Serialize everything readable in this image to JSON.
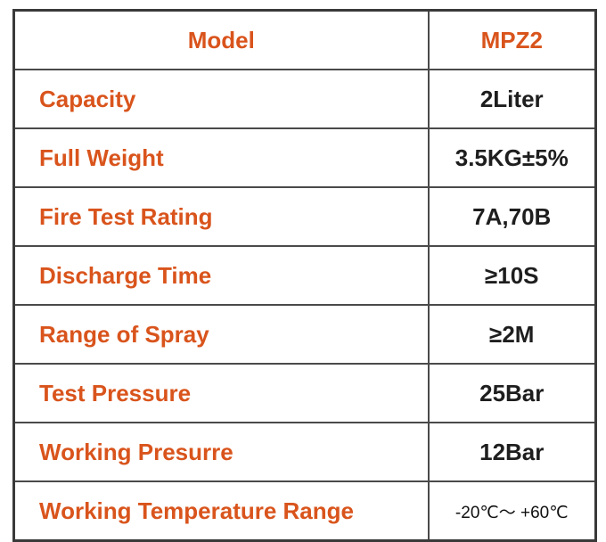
{
  "table": {
    "header": {
      "label": "Model",
      "value": "MPZ2"
    },
    "rows": [
      {
        "label": "Capacity",
        "value": "2Liter"
      },
      {
        "label": "Full Weight",
        "value": "3.5KG±5%"
      },
      {
        "label": "Fire Test Rating",
        "value": "7A,70B"
      },
      {
        "label": "Discharge Time",
        "value": "≥10S"
      },
      {
        "label": "Range of Spray",
        "value": "≥2M"
      },
      {
        "label": "Test Pressure",
        "value": "25Bar"
      },
      {
        "label": "Working Presurre",
        "value": "12Bar"
      },
      {
        "label": "Working Temperature Range",
        "value": "-20℃～ +60℃"
      }
    ]
  },
  "colors": {
    "label": "#d9541c",
    "value": "#1e1e1e",
    "border": "#3a3a3a"
  }
}
